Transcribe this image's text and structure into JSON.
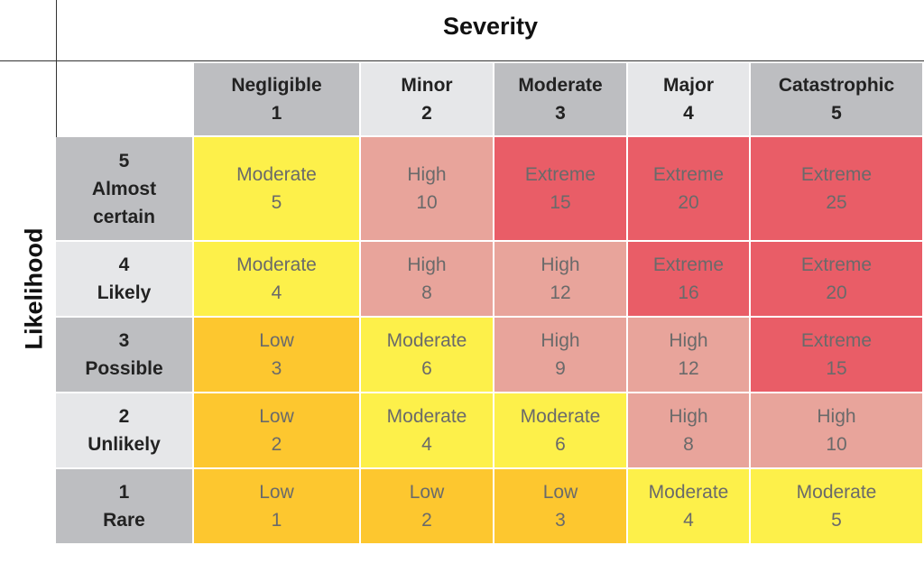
{
  "header": {
    "title": "Severity"
  },
  "side": {
    "title": "Likelihood"
  },
  "columns": [
    {
      "label": "Negligible",
      "number": 1
    },
    {
      "label": "Minor",
      "number": 2
    },
    {
      "label": "Moderate",
      "number": 3
    },
    {
      "label": "Major",
      "number": 4
    },
    {
      "label": "Catastrophic",
      "number": 5
    }
  ],
  "rows": [
    {
      "number": 5,
      "label": "Almost certain",
      "cells": [
        {
          "rating": "Moderate",
          "score": 5
        },
        {
          "rating": "High",
          "score": 10
        },
        {
          "rating": "Extreme",
          "score": 15
        },
        {
          "rating": "Extreme",
          "score": 20
        },
        {
          "rating": "Extreme",
          "score": 25
        }
      ]
    },
    {
      "number": 4,
      "label": "Likely",
      "cells": [
        {
          "rating": "Moderate",
          "score": 4
        },
        {
          "rating": "High",
          "score": 8
        },
        {
          "rating": "High",
          "score": 12
        },
        {
          "rating": "Extreme",
          "score": 16
        },
        {
          "rating": "Extreme",
          "score": 20
        }
      ]
    },
    {
      "number": 3,
      "label": "Possible",
      "cells": [
        {
          "rating": "Low",
          "score": 3
        },
        {
          "rating": "Moderate",
          "score": 6
        },
        {
          "rating": "High",
          "score": 9
        },
        {
          "rating": "High",
          "score": 12
        },
        {
          "rating": "Extreme",
          "score": 15
        }
      ]
    },
    {
      "number": 2,
      "label": "Unlikely",
      "cells": [
        {
          "rating": "Low",
          "score": 2
        },
        {
          "rating": "Moderate",
          "score": 4
        },
        {
          "rating": "Moderate",
          "score": 6
        },
        {
          "rating": "High",
          "score": 8
        },
        {
          "rating": "High",
          "score": 10
        }
      ]
    },
    {
      "number": 1,
      "label": "Rare",
      "cells": [
        {
          "rating": "Low",
          "score": 1
        },
        {
          "rating": "Low",
          "score": 2
        },
        {
          "rating": "Low",
          "score": 3
        },
        {
          "rating": "Moderate",
          "score": 4
        },
        {
          "rating": "Moderate",
          "score": 5
        }
      ]
    }
  ]
}
